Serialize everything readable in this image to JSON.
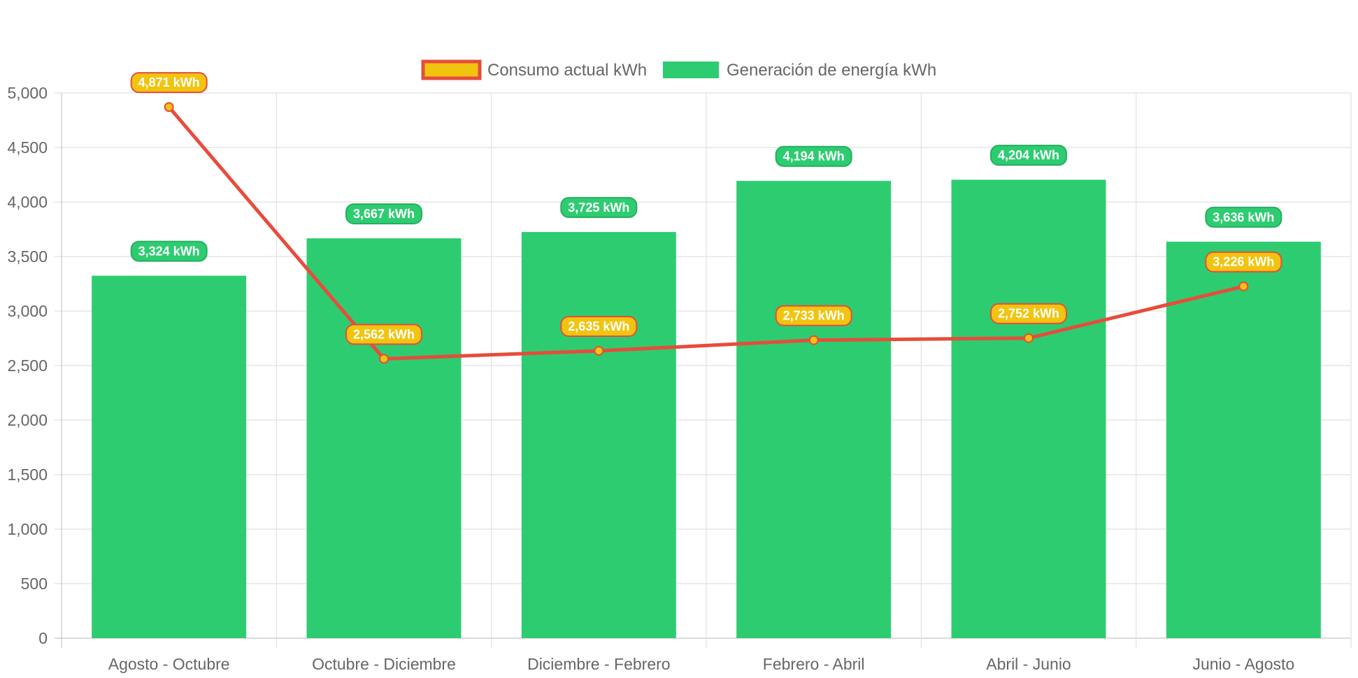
{
  "chart_data": {
    "type": "bar",
    "categories": [
      "Agosto - Octubre",
      "Octubre - Diciembre",
      "Diciembre - Febrero",
      "Febrero - Abril",
      "Abril - Junio",
      "Junio - Agosto"
    ],
    "series": [
      {
        "name": "Consumo actual kWh",
        "type": "line",
        "values": [
          4871,
          2562,
          2635,
          2733,
          2752,
          3226
        ],
        "data_labels": [
          "4,871 kWh",
          "2,562 kWh",
          "2,635 kWh",
          "2,733 kWh",
          "2,752 kWh",
          "3,226 kWh"
        ],
        "line_color": "#e74c3c",
        "point_color": "#f1c40f",
        "label_bg": "#f1c40f",
        "label_border": "#e74c3c"
      },
      {
        "name": "Generación de energía kWh",
        "type": "bar",
        "values": [
          3324,
          3667,
          3725,
          4194,
          4204,
          3636
        ],
        "data_labels": [
          "3,324 kWh",
          "3,667 kWh",
          "3,725 kWh",
          "4,194 kWh",
          "4,204 kWh",
          "3,636 kWh"
        ],
        "bar_color": "#2ecc71",
        "label_bg": "#2ecc71",
        "label_border": "#27ae60"
      }
    ],
    "ylim": [
      0,
      5000
    ],
    "y_ticks": [
      0,
      500,
      1000,
      1500,
      2000,
      2500,
      3000,
      3500,
      4000,
      4500,
      5000
    ],
    "y_tick_labels": [
      "0",
      "500",
      "1,000",
      "1,500",
      "2,000",
      "2,500",
      "3,000",
      "3,500",
      "4,000",
      "4,500",
      "5,000"
    ],
    "grid": true,
    "legend_position": "top"
  }
}
